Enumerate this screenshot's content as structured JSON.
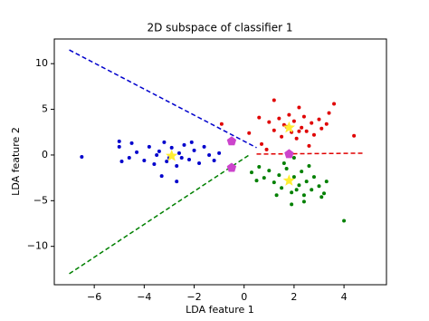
{
  "chart_data": {
    "type": "scatter",
    "title": "2D subspace of classifier 1",
    "x_label": "LDA feature 1",
    "y_label": "LDA feature 2",
    "xlim": [
      -7.6,
      5.7
    ],
    "ylim": [
      -14.2,
      12.7
    ],
    "xticks": [
      {
        "value": -6,
        "label": "−6"
      },
      {
        "value": -4,
        "label": "−4"
      },
      {
        "value": -2,
        "label": "−2"
      },
      0,
      2,
      4
    ],
    "yticks": [
      {
        "value": -10,
        "label": "−10"
      },
      {
        "value": -5,
        "label": "−5"
      },
      0,
      5,
      10
    ],
    "series": [
      {
        "style": "dashed",
        "color": "#0000cc",
        "x": [
          -7,
          0.5
        ],
        "y": [
          11.5,
          0.8
        ]
      },
      {
        "style": "dashed",
        "color": "#008000",
        "x": [
          -7,
          0.2
        ],
        "y": [
          -13,
          0
        ]
      },
      {
        "style": "dashed",
        "color": "#e00000",
        "x": [
          0.5,
          4.8
        ],
        "y": [
          0.1,
          0.2
        ]
      },
      {
        "style": "points",
        "color": "#0000cc",
        "x": [
          -6.5,
          -5,
          -5,
          -4.9,
          -4.5,
          -4.3,
          -4,
          -3.8,
          -3.6,
          -3.4,
          -3.2,
          -3,
          -2.9,
          -2.7,
          -2.6,
          -2.4,
          -2.2,
          -2,
          -1.8,
          -1.6,
          -1.4,
          -1.2,
          -1,
          -3.3,
          -2.7,
          -3.5,
          -2.5,
          -3.1,
          -2.1,
          -4.6
        ],
        "y": [
          -0.2,
          1.5,
          0.9,
          -0.7,
          1.3,
          0.3,
          -0.6,
          0.9,
          -1,
          0.4,
          1.4,
          -0.3,
          0.8,
          -1.2,
          0.2,
          1.1,
          -0.5,
          0.5,
          -0.9,
          0.9,
          0,
          -0.6,
          0.2,
          -2.3,
          -2.9,
          0,
          -0.3,
          -0.7,
          1.4,
          -0.3
        ]
      },
      {
        "style": "points",
        "color": "#e00000",
        "x": [
          -0.9,
          0.2,
          0.6,
          0.7,
          1,
          1.2,
          1.4,
          1.5,
          1.6,
          1.8,
          1.9,
          2,
          2.1,
          2.3,
          2.4,
          2.5,
          2.7,
          2.8,
          3,
          3.1,
          3.3,
          1.2,
          2.2,
          3.6,
          4.4,
          0.9,
          2.6,
          1.7,
          2.2,
          3.4
        ],
        "y": [
          3.4,
          2.4,
          4.1,
          1.2,
          3.6,
          2.7,
          4,
          2,
          3.3,
          4.4,
          2.5,
          3.7,
          1.8,
          3,
          4.2,
          2.6,
          3.5,
          2.2,
          3.9,
          2.9,
          3.4,
          6,
          5.2,
          5.6,
          2.1,
          0.6,
          1,
          3.1,
          2.6,
          4.6
        ]
      },
      {
        "style": "points",
        "color": "#008000",
        "x": [
          0.3,
          0.6,
          0.8,
          1,
          1.2,
          1.4,
          1.5,
          1.7,
          1.8,
          1.9,
          2,
          2.2,
          2.3,
          2.4,
          2.5,
          2.7,
          2.8,
          3,
          3.1,
          3.3,
          1.9,
          2.4,
          1.6,
          4,
          3.2,
          0.5,
          2.1,
          1.3,
          2.6,
          2
        ],
        "y": [
          -1.9,
          -1.3,
          -2.5,
          -1.7,
          -3,
          -2.2,
          -3.6,
          -1.5,
          -2.9,
          -4.1,
          -2.4,
          -3.3,
          -1.8,
          -4.4,
          -2.9,
          -3.8,
          -2.4,
          -3.4,
          -4.6,
          -2.9,
          -5.4,
          -5.1,
          -0.9,
          -7.2,
          -4.2,
          -2.8,
          -3.8,
          -4.4,
          -1.2,
          -0.3
        ]
      },
      {
        "style": "star",
        "color": "#ffee33",
        "x": [
          -2.9,
          1.8,
          1.8
        ],
        "y": [
          -0.1,
          3,
          -2.8
        ]
      },
      {
        "style": "pentagon",
        "color": "#cc44cc",
        "x": [
          -0.5,
          -0.5,
          1.8
        ],
        "y": [
          1.5,
          -1.4,
          0.1
        ]
      }
    ]
  }
}
